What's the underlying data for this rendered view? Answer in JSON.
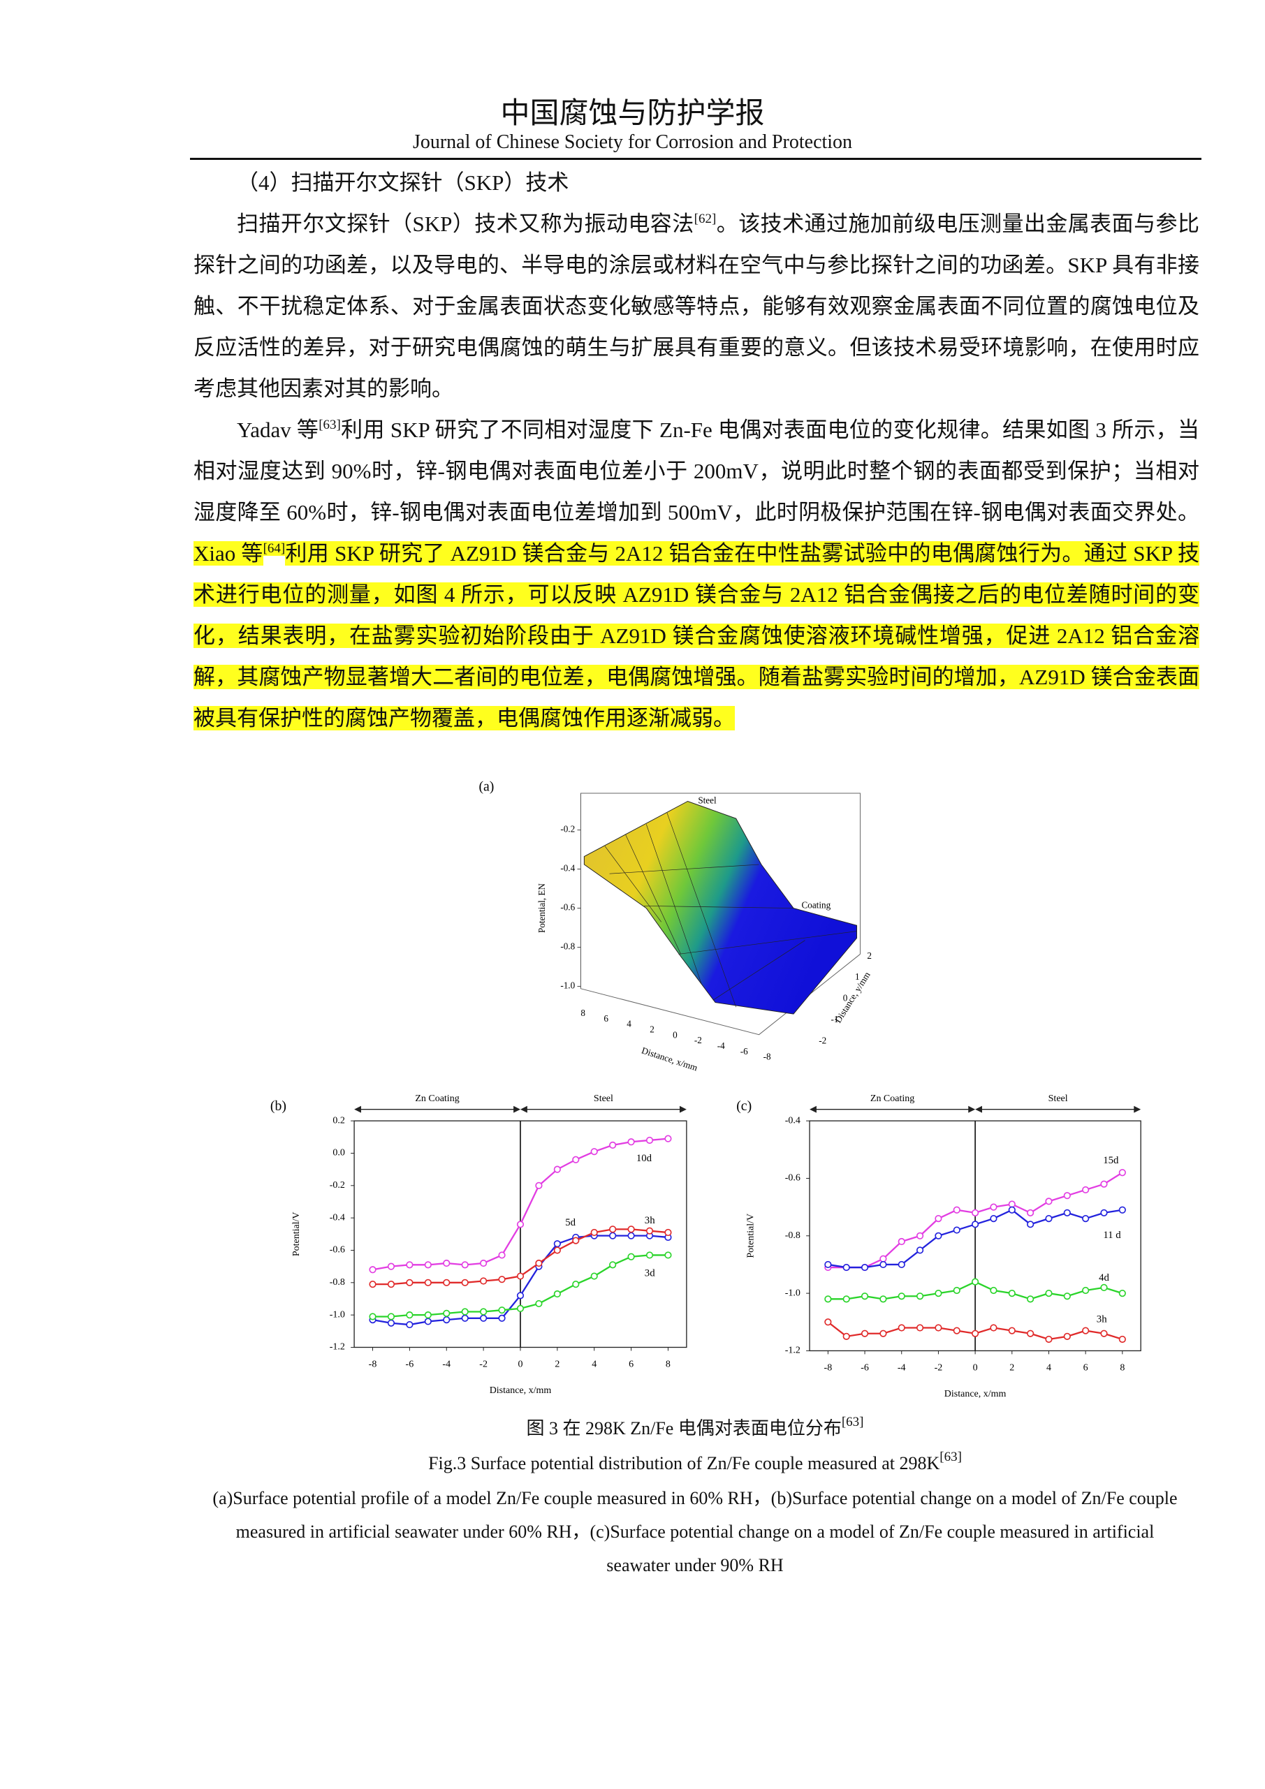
{
  "header": {
    "title_cn": "中国腐蚀与防护学报",
    "title_en": "Journal of Chinese Society for Corrosion and Protection"
  },
  "section_heading": "（4）扫描开尔文探针（SKP）技术",
  "paragraphs": [
    [
      {
        "text": "扫描开尔文探针（SKP）技术又称为振动电容法"
      },
      {
        "text": "[62]",
        "style": "sup"
      },
      {
        "text": "。该技术通过施加前级电压测量出金属表面与参比探针之间的功函差，以及导电的、半导电的涂层或材料在空气中与参比探针之间的功函差。SKP 具有非接触、不干扰稳定体系、对于金属表面状态变化敏感等特点，能够有效观察金属表面不同位置的腐蚀电位及反应活性的差异，对于研究电偶腐蚀的萌生与扩展具有重要的意义。但该技术易受环境影响，在使用时应考虑其他因素对其的影响。"
      }
    ],
    [
      {
        "text": "Yadav 等"
      },
      {
        "text": "[63]",
        "style": "sup"
      },
      {
        "text": "利用 SKP 研究了不同相对湿度下 Zn-Fe 电偶对表面电位的变化规律。结果如图 3 所示，当相对湿度达到 90%时，锌-钢电偶对表面电位差小于 200mV，说明此时整个钢的表面都受到保护；当相对湿度降至 60%时，锌-钢电偶对表面电位差增加到 500mV，此时阴极保护范围在锌-钢电偶对表面交界处。"
      },
      {
        "text": "Xiao 等",
        "style": "highlight"
      },
      {
        "text": "[64]",
        "style": "highlight-sup"
      },
      {
        "text": "利用 SKP 研究了 AZ91D 镁合金与 2A12 铝合金在中性盐雾试验中的电偶腐蚀行为。通过 SKP 技术进行电位的测量，如图 4 所示，可以反映 AZ91D 镁合金与 2A12 铝合金偶接之后的电位差随时间的变化，结果表明，在盐雾实验初始阶段由于 AZ91D 镁合金腐蚀使溶液环境碱性增强，促进 2A12 铝合金溶解，其腐蚀产物显著增大二者间的电位差，电偶腐蚀增强。随着盐雾实验时间的增加，AZ91D 镁合金表面被具有保护性的腐蚀产物覆盖，电偶腐蚀作用逐渐减弱。",
        "style": "highlight"
      }
    ]
  ],
  "figure_a": {
    "label": "(a)",
    "z_label": "Potential, EN",
    "x_label": "Distance, x/mm",
    "y_label": "Distance, y/mm",
    "z_ticks": [
      -0.2,
      -0.4,
      -0.6,
      -0.8,
      {
        "value": -1,
        "label": "-1.0"
      }
    ],
    "x_ticks": [
      8,
      6,
      4,
      2,
      0,
      -2,
      -4,
      -6,
      -8
    ],
    "y_ticks": [
      2,
      1,
      0,
      -1,
      -2
    ],
    "annotations": [
      "Steel",
      "Coating"
    ]
  },
  "chart_data": [
    {
      "type": "line",
      "title": "(b)",
      "x_label": "Distance, x/mm",
      "y_label": "Potential/V",
      "regions": [
        "Zn Coating",
        "Steel"
      ],
      "divider_x": 0,
      "xlim": [
        -9,
        9
      ],
      "ylim": [
        -1.2,
        0.2
      ],
      "xticks": [
        -8,
        -6,
        -4,
        -2,
        0,
        2,
        4,
        6,
        8
      ],
      "yticks": [
        0.2,
        {
          "value": 0,
          "label": "0.0"
        },
        -0.2,
        -0.4,
        -0.6,
        -0.8,
        {
          "value": -1,
          "label": "-1.0"
        },
        -1.2
      ],
      "x": [
        -8,
        -7,
        -6,
        -5,
        -4,
        -3,
        -2,
        -1,
        0,
        1,
        2,
        3,
        4,
        5,
        6,
        7,
        8
      ],
      "series": [
        {
          "name": "10d",
          "color": "#e23de2",
          "values": [
            -0.72,
            -0.7,
            -0.69,
            -0.69,
            -0.68,
            -0.69,
            -0.68,
            -0.63,
            -0.44,
            -0.2,
            -0.1,
            -0.04,
            0.01,
            0.05,
            0.07,
            0.08,
            0.09
          ]
        },
        {
          "name": "5d",
          "color": "#2222dd",
          "values": [
            -1.03,
            -1.05,
            -1.06,
            -1.04,
            -1.03,
            -1.02,
            -1.02,
            -1.02,
            -0.88,
            -0.7,
            -0.56,
            -0.52,
            -0.51,
            -0.51,
            -0.51,
            -0.51,
            -0.52
          ]
        },
        {
          "name": "3h",
          "color": "#e02a2a",
          "values": [
            -0.81,
            -0.81,
            -0.8,
            -0.8,
            -0.8,
            -0.8,
            -0.79,
            -0.78,
            -0.76,
            -0.68,
            -0.6,
            -0.54,
            -0.49,
            -0.47,
            -0.47,
            -0.48,
            -0.49
          ]
        },
        {
          "name": "3d",
          "color": "#2ad42a",
          "values": [
            -1.01,
            -1.01,
            -1.0,
            -1.0,
            -0.99,
            -0.98,
            -0.98,
            -0.97,
            -0.96,
            -0.93,
            -0.87,
            -0.81,
            -0.76,
            -0.69,
            -0.64,
            -0.63,
            -0.63
          ]
        }
      ]
    },
    {
      "type": "line",
      "title": "(c)",
      "x_label": "Distance, x/mm",
      "y_label": "Potential/V",
      "regions": [
        "Zn Coating",
        "Steel"
      ],
      "divider_x": 0,
      "xlim": [
        -9,
        9
      ],
      "ylim": [
        -1.2,
        -0.4
      ],
      "xticks": [
        -8,
        -6,
        -4,
        -2,
        0,
        2,
        4,
        6,
        8
      ],
      "yticks": [
        -0.4,
        -0.6,
        -0.8,
        {
          "value": -1,
          "label": "-1.0"
        },
        -1.2
      ],
      "x": [
        -8,
        -7,
        -6,
        -5,
        -4,
        -3,
        -2,
        -1,
        0,
        1,
        2,
        3,
        4,
        5,
        6,
        7,
        8
      ],
      "series": [
        {
          "name": "15d",
          "color": "#e23de2",
          "values": [
            -0.91,
            -0.91,
            -0.91,
            -0.88,
            -0.82,
            -0.8,
            -0.74,
            -0.71,
            -0.72,
            -0.7,
            -0.69,
            -0.72,
            -0.68,
            -0.66,
            -0.64,
            -0.62,
            -0.58
          ]
        },
        {
          "name": "11 d",
          "color": "#2222dd",
          "values": [
            -0.9,
            -0.91,
            -0.91,
            -0.9,
            -0.9,
            -0.85,
            -0.8,
            -0.78,
            -0.76,
            -0.74,
            -0.71,
            -0.76,
            -0.74,
            -0.72,
            -0.74,
            -0.72,
            -0.71
          ]
        },
        {
          "name": "4d",
          "color": "#2ad42a",
          "values": [
            -1.02,
            -1.02,
            -1.01,
            -1.02,
            -1.01,
            -1.01,
            -1.0,
            -0.99,
            -0.96,
            -0.99,
            -1.0,
            -1.02,
            -1.0,
            -1.01,
            -0.99,
            -0.98,
            -1.0
          ]
        },
        {
          "name": "3h",
          "color": "#e02a2a",
          "values": [
            -1.1,
            -1.15,
            -1.14,
            -1.14,
            -1.12,
            -1.12,
            -1.12,
            -1.13,
            -1.14,
            -1.12,
            -1.13,
            -1.14,
            -1.16,
            -1.15,
            -1.13,
            -1.14,
            -1.16
          ]
        }
      ]
    }
  ],
  "caption": {
    "cn": [
      {
        "text": "图 3 在 298K Zn/Fe 电偶对表面电位分布"
      },
      {
        "text": "[63]",
        "style": "sup"
      }
    ],
    "en": [
      {
        "text": "Fig.3 Surface potential distribution of Zn/Fe couple measured at 298K"
      },
      {
        "text": "[63]",
        "style": "sup"
      }
    ],
    "description": "(a)Surface potential profile of a model Zn/Fe couple measured in 60% RH，(b)Surface potential change on a model of Zn/Fe couple measured in artificial seawater under 60% RH，(c)Surface potential change on a model of Zn/Fe couple measured in artificial seawater under 90% RH"
  }
}
